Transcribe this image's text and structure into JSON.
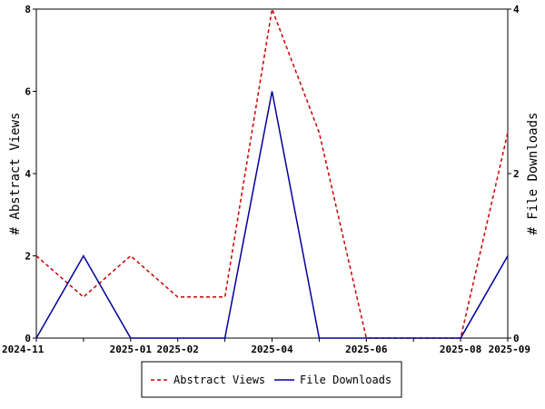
{
  "chart_data": {
    "type": "line",
    "x": [
      "2024-11",
      "2024-12",
      "2025-01",
      "2025-02",
      "2025-03",
      "2025-04",
      "2025-05",
      "2025-06",
      "2025-07",
      "2025-08",
      "2025-09"
    ],
    "x_tick_labels": [
      {
        "value": "2024-11",
        "label": "2024-11"
      },
      {
        "value": "2025-01",
        "label": "2025-01"
      },
      {
        "value": "2025-02",
        "label": "2025-02"
      },
      {
        "value": "2025-04",
        "label": "2025-04"
      },
      {
        "value": "2025-06",
        "label": "2025-06"
      },
      {
        "value": "2025-08",
        "label": "2025-08"
      },
      {
        "value": "2025-09",
        "label": "2025-09"
      }
    ],
    "y_left": {
      "label": "# Abstract Views",
      "lim": [
        0,
        8
      ],
      "ticks": [
        0,
        2,
        4,
        6,
        8
      ]
    },
    "y_right": {
      "label": "# File Downloads",
      "lim": [
        0,
        4
      ],
      "ticks": [
        0,
        2,
        4
      ]
    },
    "series": [
      {
        "name": "Abstract Views",
        "axis": "left",
        "color": "#cc0000",
        "style": "dashed",
        "values": [
          2,
          1,
          2,
          1,
          1,
          8,
          5,
          0,
          0,
          0,
          5
        ]
      },
      {
        "name": "File Downloads",
        "axis": "right",
        "color": "#00009c",
        "style": "solid",
        "values": [
          0,
          1,
          0,
          0,
          0,
          3,
          0,
          0,
          0,
          0,
          1
        ]
      }
    ],
    "grid": false,
    "legend_placement": "bottom"
  }
}
